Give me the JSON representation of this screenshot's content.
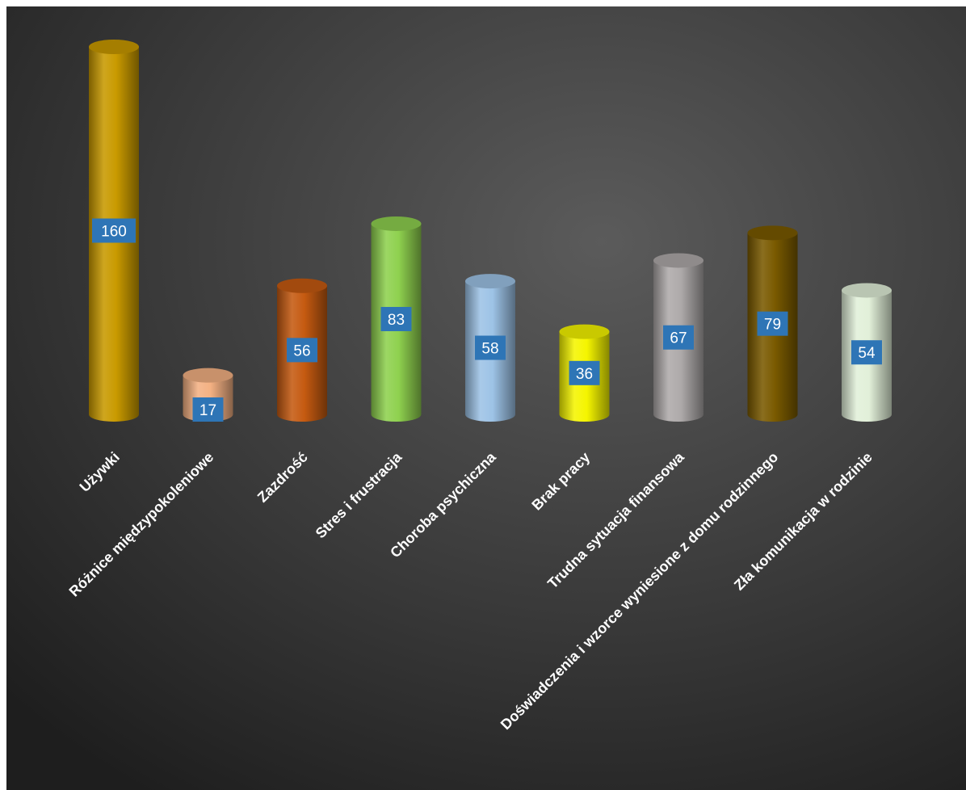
{
  "chart_data": {
    "type": "bar",
    "bar_shape": "cylinder",
    "categories": [
      "Używki",
      "Różnice międzypokoleniowe",
      "Zazdrość",
      "Stres i frustracja",
      "Choroba psychiczna",
      "Brak pracy",
      "Trudna sytuacja finansowa",
      "Doświadczenia i wzorce wyniesione z domu rodzinnego",
      "Zła komunikacja w rodzinie"
    ],
    "values": [
      160,
      17,
      56,
      83,
      58,
      36,
      67,
      79,
      54
    ],
    "colors": [
      "#c99a00",
      "#f4b183",
      "#c55a11",
      "#8fd14f",
      "#9dc3e6",
      "#f5f500",
      "#aeaaaa",
      "#7a5a00",
      "#e2f0d9"
    ],
    "ylim": [
      0,
      160
    ],
    "data_labels": true,
    "data_label_background": "#2e75b6",
    "legend": "none",
    "grid": false,
    "background": "#3a3a3a"
  }
}
